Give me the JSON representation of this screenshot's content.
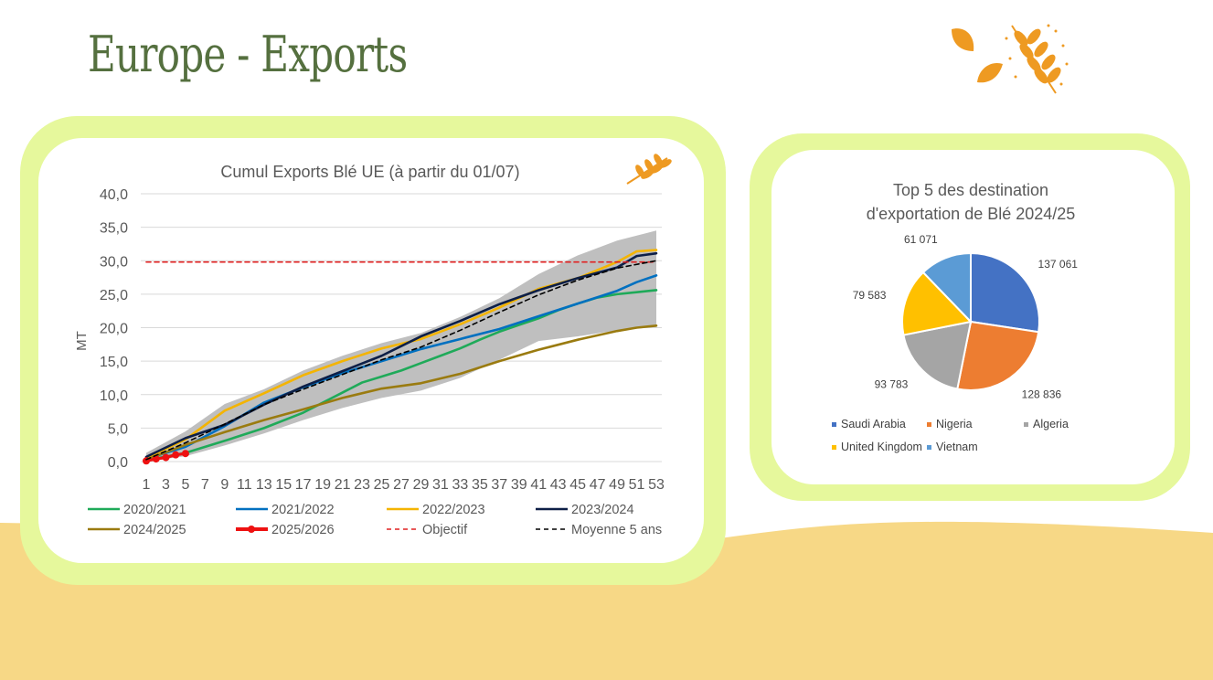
{
  "page": {
    "title": "Europe - Exports"
  },
  "icons": {
    "header": "wheat-leaves-icon",
    "chart": "wheat-icon"
  },
  "colors": {
    "title": "#55703f",
    "panel_frame": "#e6f89c",
    "sand": "#f7d886",
    "accent": "#ee9a22"
  },
  "chart_data": [
    {
      "type": "line",
      "title": "Cumul Exports Blé UE (à partir du 01/07)",
      "ylabel": "MT",
      "xlabel": "",
      "ylim": [
        0,
        40
      ],
      "yticks": [
        "0,0",
        "5,0",
        "10,0",
        "15,0",
        "20,0",
        "25,0",
        "30,0",
        "35,0",
        "40,0"
      ],
      "x": [
        1,
        3,
        5,
        7,
        9,
        11,
        13,
        15,
        17,
        19,
        21,
        23,
        25,
        27,
        29,
        31,
        33,
        35,
        37,
        39,
        41,
        43,
        45,
        47,
        49,
        51,
        53
      ],
      "xticks": [
        "1",
        "3",
        "5",
        "7",
        "9",
        "11",
        "13",
        "15",
        "17",
        "19",
        "21",
        "23",
        "25",
        "27",
        "29",
        "31",
        "33",
        "35",
        "37",
        "39",
        "41",
        "43",
        "45",
        "47",
        "49",
        "51",
        "53"
      ],
      "grid": true,
      "legend_position": "bottom",
      "band": {
        "x": [
          1,
          5,
          9,
          13,
          17,
          21,
          25,
          29,
          33,
          37,
          41,
          45,
          49,
          53
        ],
        "low": [
          0,
          0.8,
          2.4,
          4.2,
          6.2,
          8.0,
          9.5,
          10.6,
          12.5,
          15.2,
          18.0,
          18.7,
          19.6,
          20.1
        ],
        "high": [
          1.3,
          4.5,
          8.6,
          10.8,
          13.6,
          15.8,
          17.7,
          19.2,
          21.6,
          24.4,
          28.0,
          30.8,
          33.0,
          34.5
        ]
      },
      "series": [
        {
          "name": "2020/2021",
          "color": "#1faa59",
          "x": [
            1,
            5,
            9,
            13,
            17,
            21,
            23,
            25,
            27,
            29,
            31,
            33,
            35,
            37,
            39,
            41,
            43,
            45,
            47,
            49,
            51,
            53
          ],
          "values": [
            0.2,
            1.3,
            3.1,
            5.0,
            7.3,
            10.3,
            11.8,
            12.7,
            13.6,
            14.7,
            15.8,
            16.9,
            18.2,
            19.4,
            20.4,
            21.4,
            22.6,
            23.6,
            24.5,
            25.0,
            25.3,
            25.6
          ]
        },
        {
          "name": "2021/2022",
          "color": "#0070c0",
          "x": [
            1,
            5,
            9,
            13,
            17,
            21,
            25,
            29,
            33,
            37,
            41,
            45,
            49,
            51,
            53
          ],
          "values": [
            0.4,
            2.2,
            5.3,
            8.8,
            11.1,
            13.2,
            15.0,
            16.8,
            18.3,
            19.8,
            21.7,
            23.6,
            25.5,
            26.8,
            27.8
          ]
        },
        {
          "name": "2022/2023",
          "color": "#f4b400",
          "x": [
            1,
            5,
            9,
            13,
            17,
            21,
            25,
            29,
            33,
            37,
            41,
            45,
            49,
            51,
            53
          ],
          "values": [
            0.5,
            3.3,
            7.6,
            10.2,
            12.9,
            15.0,
            16.9,
            18.3,
            20.5,
            23.0,
            25.8,
            27.4,
            29.8,
            31.4,
            31.6
          ]
        },
        {
          "name": "2023/2024",
          "color": "#0d1f47",
          "x": [
            1,
            5,
            9,
            13,
            17,
            21,
            25,
            29,
            33,
            37,
            41,
            45,
            49,
            51,
            53
          ],
          "values": [
            0.7,
            3.5,
            5.5,
            8.5,
            11.2,
            13.5,
            15.8,
            18.7,
            21.0,
            23.5,
            25.6,
            27.4,
            29.0,
            30.7,
            31.1
          ]
        },
        {
          "name": "2024/2025",
          "color": "#9a7b10",
          "x": [
            1,
            5,
            9,
            13,
            17,
            21,
            25,
            29,
            33,
            37,
            41,
            45,
            49,
            51,
            53
          ],
          "values": [
            0.3,
            2.5,
            4.4,
            6.2,
            7.8,
            9.5,
            10.9,
            11.7,
            13.1,
            15.0,
            16.7,
            18.2,
            19.5,
            20.0,
            20.3
          ]
        },
        {
          "name": "2025/2026",
          "color": "#ee1111",
          "x": [
            1,
            2,
            3,
            4,
            5
          ],
          "values": [
            0.1,
            0.4,
            0.6,
            1.0,
            1.2
          ],
          "markers": true
        },
        {
          "name": "Objectif",
          "color": "#e02020",
          "dashed": true,
          "x": [
            1,
            53
          ],
          "values": [
            29.8,
            29.8
          ]
        },
        {
          "name": "Moyenne 5 ans",
          "color": "#000000",
          "dashed": true,
          "x": [
            1,
            5,
            9,
            13,
            17,
            21,
            25,
            29,
            33,
            37,
            41,
            45,
            49,
            53
          ],
          "values": [
            0.3,
            2.8,
            5.6,
            8.5,
            10.8,
            13.0,
            15.2,
            17.1,
            19.6,
            22.3,
            24.9,
            27.1,
            28.9,
            30.0
          ]
        }
      ]
    },
    {
      "type": "pie",
      "title": "Top 5 des destination d'exportation de Blé 2024/25",
      "title_lines": [
        "Top 5 des destination",
        "d'exportation de Blé 2024/25"
      ],
      "legend_position": "bottom",
      "slices": [
        {
          "name": "Saudi Arabia",
          "value": 137061,
          "label": "137 061",
          "color": "#4472c4"
        },
        {
          "name": "Nigeria",
          "value": 128836,
          "label": "128 836",
          "color": "#ed7d31"
        },
        {
          "name": "Algeria",
          "value": 93783,
          "label": "93 783",
          "color": "#a5a5a5"
        },
        {
          "name": "United Kingdom",
          "value": 79583,
          "label": "79 583",
          "color": "#ffc000"
        },
        {
          "name": "Vietnam",
          "value": 61071,
          "label": "61 071",
          "color": "#5b9bd5"
        }
      ]
    }
  ]
}
